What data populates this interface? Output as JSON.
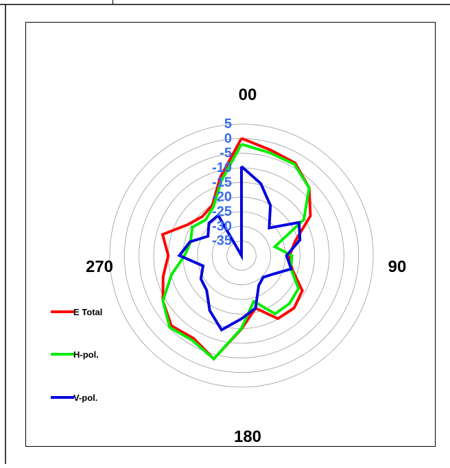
{
  "chart_data": {
    "type": "polar-line",
    "angle_labels": [
      {
        "angle": 0,
        "text": "00"
      },
      {
        "angle": 90,
        "text": "90"
      },
      {
        "angle": 180,
        "text": "180"
      },
      {
        "angle": 270,
        "text": "270"
      }
    ],
    "radial_ticks": [
      "5",
      "0",
      "-5",
      "-10",
      "-15",
      "-20",
      "-25",
      "-30",
      "-35"
    ],
    "radial_range": [
      -40,
      5
    ],
    "angular_step_deg": 15,
    "grid": true,
    "legend_position": "left",
    "series": [
      {
        "name": "E Total",
        "color": "#ff0000",
        "values": [
          0.1,
          -2.5,
          -3.4,
          -7.3,
          -12.8,
          -21.0,
          -23.6,
          -22.1,
          -16.0,
          -14.6,
          -15.1,
          -21.4,
          -14.9,
          -3.4,
          -7.3,
          -6.1,
          -9.0,
          -12.3,
          -15.0,
          -12.1,
          -18.8,
          -21.1,
          -20.1,
          -12.2
        ]
      },
      {
        "name": "H-pol.",
        "color": "#00ee00",
        "values": [
          -1.9,
          -3.5,
          -3.9,
          -7.3,
          -15.4,
          -28.2,
          -22.8,
          -22.5,
          -17.5,
          -16.8,
          -17.0,
          -23.8,
          -15.1,
          -3.4,
          -6.5,
          -5.3,
          -9.0,
          -15.3,
          -20.6,
          -22.0,
          -20.6,
          -22.7,
          -20.8,
          -13.5
        ]
      },
      {
        "name": "V-pol.",
        "color": "#0000dd",
        "values": [
          -9.5,
          -14.5,
          -20.2,
          -26.6,
          -17.3,
          -19.3,
          -24.6,
          -22.4,
          -27.4,
          -29.5,
          -28.2,
          -21.4,
          -18.4,
          -13.7,
          -18.3,
          -23.2,
          -24.0,
          -26.4,
          -18.8,
          -21.8,
          -26.8,
          -24.3,
          -24.1,
          -40.0
        ]
      }
    ]
  }
}
